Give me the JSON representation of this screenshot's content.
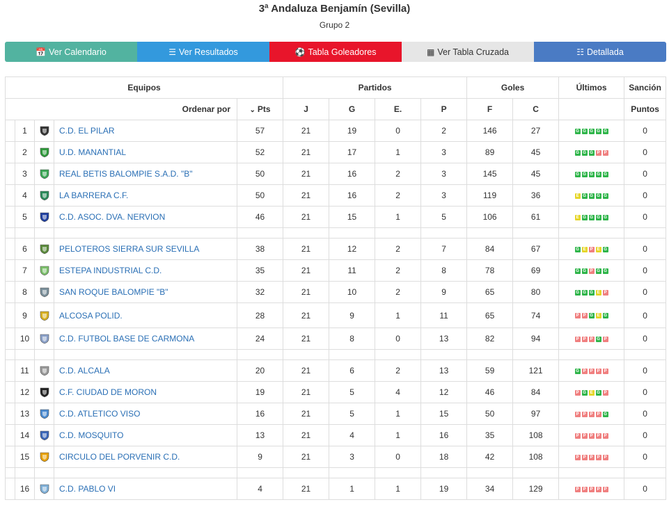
{
  "header": {
    "title": "3ª Andaluza Benjamín (Sevilla)",
    "subtitle": "Grupo 2"
  },
  "buttons": [
    {
      "label": "Ver Calendario",
      "icon": "calendar-icon"
    },
    {
      "label": "Ver Resultados",
      "icon": "list-icon"
    },
    {
      "label": "Tabla Goleadores",
      "icon": "soccer-ball-icon"
    },
    {
      "label": "Ver Tabla Cruzada",
      "icon": "grid-icon"
    },
    {
      "label": "Detallada",
      "icon": "detail-list-icon"
    }
  ],
  "table": {
    "groups": {
      "equipos": "Equipos",
      "partidos": "Partidos",
      "goles": "Goles",
      "ultimos": "Últimos",
      "sancion": "Sanción"
    },
    "subheaders": {
      "ordenar": "Ordenar por",
      "pts": "Pts",
      "j": "J",
      "g": "G",
      "e": "E.",
      "p": "P",
      "f": "F",
      "c": "C",
      "puntos": "Puntos"
    },
    "rows": [
      {
        "pos": "1",
        "name": "C.D. EL PILAR",
        "pts": "57",
        "j": "21",
        "g": "19",
        "e": "0",
        "p": "2",
        "f": "146",
        "c": "27",
        "last": "GGGGG",
        "sancion": "0",
        "logo": "#333"
      },
      {
        "pos": "2",
        "name": "U.D. MANANTIAL",
        "pts": "52",
        "j": "21",
        "g": "17",
        "e": "1",
        "p": "3",
        "f": "89",
        "c": "45",
        "last": "GGGPP",
        "sancion": "0",
        "logo": "#2e9a3b"
      },
      {
        "pos": "3",
        "name": "REAL BETIS BALOMPIE S.A.D. \"B\"",
        "pts": "50",
        "j": "21",
        "g": "16",
        "e": "2",
        "p": "3",
        "f": "145",
        "c": "45",
        "last": "GGGGG",
        "sancion": "0",
        "logo": "#3aa655"
      },
      {
        "pos": "4",
        "name": "LA BARRERA C.F.",
        "pts": "50",
        "j": "21",
        "g": "16",
        "e": "2",
        "p": "3",
        "f": "119",
        "c": "36",
        "last": "EGGGG",
        "sancion": "0",
        "logo": "#2b8a5a"
      },
      {
        "pos": "5",
        "name": "C.D. ASOC. DVA. NERVION",
        "pts": "46",
        "j": "21",
        "g": "15",
        "e": "1",
        "p": "5",
        "f": "106",
        "c": "61",
        "last": "EGGGG",
        "sancion": "0",
        "logo": "#1f3fa0"
      },
      {
        "sep": true
      },
      {
        "pos": "6",
        "name": "PELOTEROS SIERRA SUR SEVILLA",
        "pts": "38",
        "j": "21",
        "g": "12",
        "e": "2",
        "p": "7",
        "f": "84",
        "c": "67",
        "last": "GEPEG",
        "sancion": "0",
        "logo": "#5a8a3a"
      },
      {
        "pos": "7",
        "name": "ESTEPA INDUSTRIAL C.D.",
        "pts": "35",
        "j": "21",
        "g": "11",
        "e": "2",
        "p": "8",
        "f": "78",
        "c": "69",
        "last": "GGPGG",
        "sancion": "0",
        "logo": "#7bbf6a"
      },
      {
        "pos": "8",
        "name": "SAN ROQUE BALOMPIE \"B\"",
        "pts": "32",
        "j": "21",
        "g": "10",
        "e": "2",
        "p": "9",
        "f": "65",
        "c": "80",
        "last": "GGGEP",
        "sancion": "0",
        "logo": "#7a8f9a"
      },
      {
        "pos": "9",
        "name": "ALCOSA POLID.",
        "pts": "28",
        "j": "21",
        "g": "9",
        "e": "1",
        "p": "11",
        "f": "65",
        "c": "74",
        "last": "PPGEG",
        "sancion": "0",
        "logo": "#d8b020"
      },
      {
        "pos": "10",
        "name": "C.D. FUTBOL BASE DE CARMONA",
        "pts": "24",
        "j": "21",
        "g": "8",
        "e": "0",
        "p": "13",
        "f": "82",
        "c": "94",
        "last": "PPPGP",
        "sancion": "0",
        "logo": "#8aa0c8"
      },
      {
        "sep": true
      },
      {
        "pos": "11",
        "name": "C.D. ALCALA",
        "pts": "20",
        "j": "21",
        "g": "6",
        "e": "2",
        "p": "13",
        "f": "59",
        "c": "121",
        "last": "GPPPP",
        "sancion": "0",
        "logo": "#9a9a9a"
      },
      {
        "pos": "12",
        "name": "C.F. CIUDAD DE MORON",
        "pts": "19",
        "j": "21",
        "g": "5",
        "e": "4",
        "p": "12",
        "f": "46",
        "c": "84",
        "last": "PGEGP",
        "sancion": "0",
        "logo": "#222"
      },
      {
        "pos": "13",
        "name": "C.D. ATLETICO VISO",
        "pts": "16",
        "j": "21",
        "g": "5",
        "e": "1",
        "p": "15",
        "f": "50",
        "c": "97",
        "last": "PPPPG",
        "sancion": "0",
        "logo": "#4a8ad0"
      },
      {
        "pos": "14",
        "name": "C.D. MOSQUITO",
        "pts": "13",
        "j": "21",
        "g": "4",
        "e": "1",
        "p": "16",
        "f": "35",
        "c": "108",
        "last": "PPPPP",
        "sancion": "0",
        "logo": "#3a66b8"
      },
      {
        "pos": "15",
        "name": "CIRCULO DEL PORVENIR C.D.",
        "pts": "9",
        "j": "21",
        "g": "3",
        "e": "0",
        "p": "18",
        "f": "42",
        "c": "108",
        "last": "PPPPP",
        "sancion": "0",
        "logo": "#e8a000"
      },
      {
        "sep": true
      },
      {
        "pos": "16",
        "name": "C.D. PABLO VI",
        "pts": "4",
        "j": "21",
        "g": "1",
        "e": "1",
        "p": "19",
        "f": "34",
        "c": "129",
        "last": "PPPPP",
        "sancion": "0",
        "logo": "#7fb0d8"
      }
    ]
  }
}
